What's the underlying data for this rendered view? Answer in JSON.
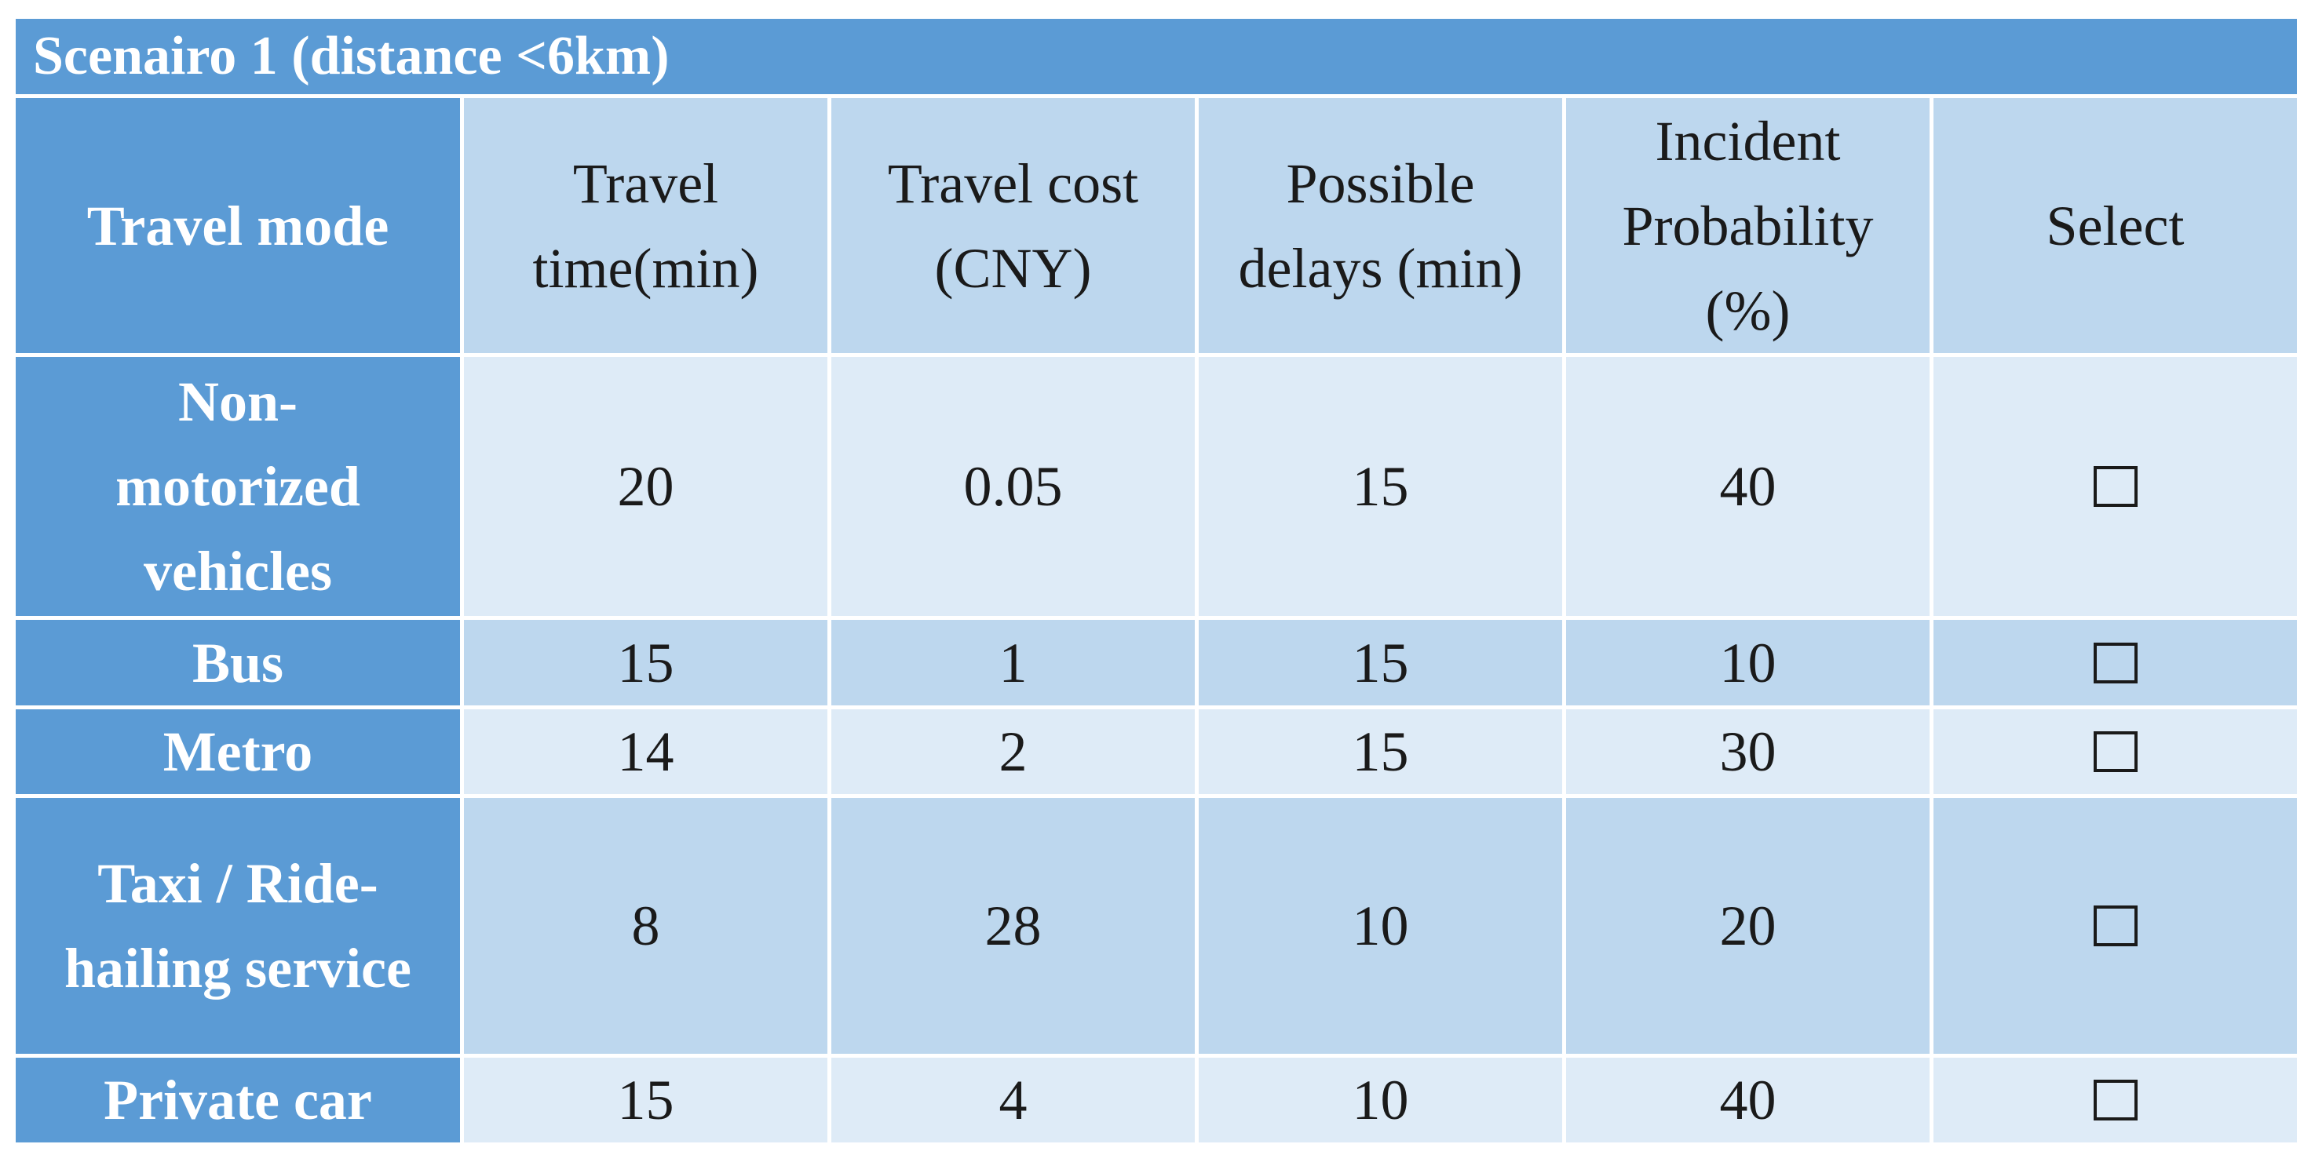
{
  "title": "Scenairo 1 (distance <6km)",
  "table": {
    "header": [
      "Travel mode",
      "Travel time(min)",
      "Travel cost (CNY)",
      "Possible delays (min)",
      "Incident Probability (%)",
      "Select"
    ],
    "rows": [
      [
        "Non-motorized vehicles",
        20,
        0.05,
        15,
        40
      ],
      [
        "Bus",
        15,
        1,
        15,
        10
      ],
      [
        "Metro",
        14,
        2,
        15,
        30
      ],
      [
        "Taxi / Ride-hailing service",
        8,
        28,
        10,
        20
      ],
      [
        "Private car",
        15,
        4,
        10,
        40
      ]
    ]
  }
}
